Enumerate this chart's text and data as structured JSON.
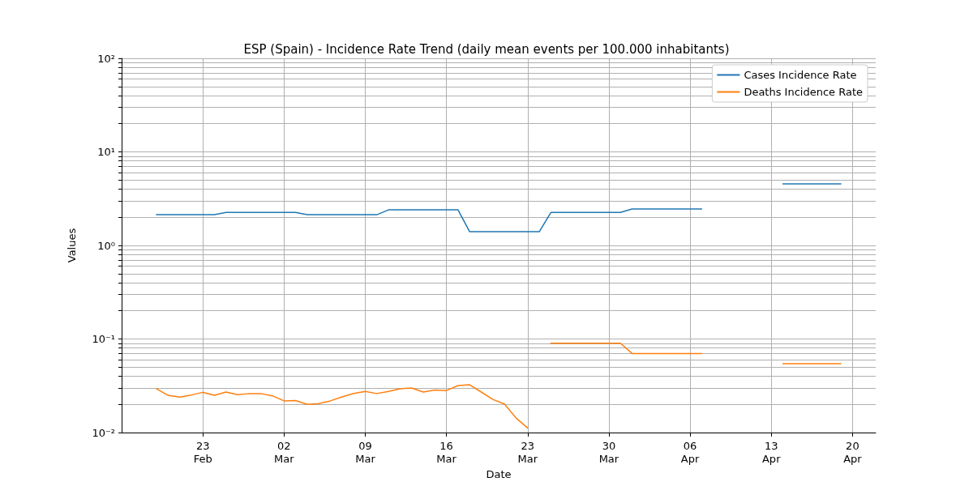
{
  "chart_data": {
    "type": "line",
    "title": "ESP (Spain) - Incidence Rate Trend (daily mean events per 100.000 inhabitants)",
    "xlabel": "Date",
    "ylabel": "Values",
    "x": [
      "--02-19",
      "--02-20",
      "--02-21",
      "--02-22",
      "--02-23",
      "--02-24",
      "--02-25",
      "--02-26",
      "--02-27",
      "--02-28",
      "--03-01",
      "--03-02",
      "--03-03",
      "--03-04",
      "--03-05",
      "--03-06",
      "--03-07",
      "--03-08",
      "--03-09",
      "--03-10",
      "--03-11",
      "--03-12",
      "--03-13",
      "--03-14",
      "--03-15",
      "--03-16",
      "--03-17",
      "--03-18",
      "--03-19",
      "--03-20",
      "--03-21",
      "--03-22",
      "--03-23",
      "--03-24",
      "--03-25",
      "--03-26",
      "--03-27",
      "--03-28",
      "--03-29",
      "--03-30",
      "--03-31",
      "--04-01",
      "--04-02",
      "--04-03",
      "--04-04",
      "--04-05",
      "--04-06",
      "--04-07",
      "--04-08",
      "--04-09",
      "--04-10",
      "--04-11",
      "--04-12",
      "--04-13",
      "--04-14",
      "--04-15",
      "--04-16",
      "--04-17",
      "--04-18",
      "--04-19"
    ],
    "series": [
      {
        "name": "Cases Incidence Rate",
        "color": "#1f77b4",
        "values": [
          2.13,
          2.13,
          2.13,
          2.13,
          2.13,
          2.13,
          2.25,
          2.25,
          2.25,
          2.25,
          2.25,
          2.25,
          2.25,
          2.13,
          2.13,
          2.13,
          2.13,
          2.13,
          2.13,
          2.13,
          2.4,
          2.4,
          2.4,
          2.4,
          2.4,
          2.4,
          2.4,
          1.4,
          1.4,
          1.4,
          1.4,
          1.4,
          1.4,
          1.4,
          2.25,
          2.25,
          2.25,
          2.25,
          2.25,
          2.25,
          2.25,
          2.45,
          2.45,
          2.45,
          2.45,
          2.45,
          2.45,
          2.45,
          null,
          null,
          null,
          null,
          null,
          null,
          4.55,
          4.55,
          4.55,
          4.55,
          4.55,
          4.55
        ]
      },
      {
        "name": "Deaths Incidence Rate",
        "color": "#ff7f0e",
        "values": [
          0.0294,
          0.025,
          0.0239,
          0.0252,
          0.0269,
          0.025,
          0.0271,
          0.0254,
          0.0261,
          0.0261,
          0.0247,
          0.0218,
          0.022,
          0.02,
          0.0204,
          0.0218,
          0.024,
          0.0262,
          0.0275,
          0.0261,
          0.0275,
          0.0294,
          0.0299,
          0.0271,
          0.0285,
          0.0281,
          0.0318,
          0.0324,
          0.0271,
          0.0226,
          0.0202,
          0.0143,
          0.0112,
          null,
          0.09,
          0.09,
          0.09,
          0.09,
          0.09,
          0.09,
          0.09,
          0.07,
          0.07,
          0.07,
          0.07,
          0.07,
          0.07,
          0.07,
          null,
          null,
          null,
          null,
          null,
          null,
          0.0545,
          0.0545,
          0.0545,
          0.0545,
          0.0545,
          0.0545
        ]
      }
    ],
    "log": "y",
    "xlim": [
      "--02-16",
      "--04-22"
    ],
    "xticks": [
      {
        "value": "--02-23",
        "label": "23\nFeb"
      },
      {
        "value": "--03-02",
        "label": "02\nMar"
      },
      {
        "value": "--03-09",
        "label": "09\nMar"
      },
      {
        "value": "--03-16",
        "label": "16\nMar"
      },
      {
        "value": "--03-23",
        "label": "23\nMar"
      },
      {
        "value": "--03-30",
        "label": "30\nMar"
      },
      {
        "value": "--04-06",
        "label": "06\nApr"
      },
      {
        "value": "--04-13",
        "label": "13\nApr"
      },
      {
        "value": "--04-20",
        "label": "20\nApr"
      }
    ],
    "ylim": [
      0.01,
      100
    ],
    "yticks": [
      {
        "value": 0.01,
        "label": "10⁻²"
      },
      {
        "value": 0.02,
        "label": null
      },
      {
        "value": 0.03,
        "label": null
      },
      {
        "value": 0.04,
        "label": null
      },
      {
        "value": 0.05,
        "label": null
      },
      {
        "value": 0.06,
        "label": null
      },
      {
        "value": 0.07,
        "label": null
      },
      {
        "value": 0.08,
        "label": null
      },
      {
        "value": 0.09,
        "label": null
      },
      {
        "value": 0.1,
        "label": "10⁻¹"
      },
      {
        "value": 0.2,
        "label": null
      },
      {
        "value": 0.3,
        "label": null
      },
      {
        "value": 0.4,
        "label": null
      },
      {
        "value": 0.5,
        "label": null
      },
      {
        "value": 0.6,
        "label": null
      },
      {
        "value": 0.7,
        "label": null
      },
      {
        "value": 0.8,
        "label": null
      },
      {
        "value": 0.9,
        "label": null
      },
      {
        "value": 1,
        "label": "10⁰"
      },
      {
        "value": 2,
        "label": null
      },
      {
        "value": 3,
        "label": null
      },
      {
        "value": 4,
        "label": null
      },
      {
        "value": 5,
        "label": null
      },
      {
        "value": 6,
        "label": null
      },
      {
        "value": 7,
        "label": null
      },
      {
        "value": 8,
        "label": null
      },
      {
        "value": 9,
        "label": null
      },
      {
        "value": 10,
        "label": "10¹"
      },
      {
        "value": 20,
        "label": null
      },
      {
        "value": 30,
        "label": null
      },
      {
        "value": 40,
        "label": null
      },
      {
        "value": 50,
        "label": null
      },
      {
        "value": 60,
        "label": null
      },
      {
        "value": 70,
        "label": null
      },
      {
        "value": 80,
        "label": null
      },
      {
        "value": 90,
        "label": null
      },
      {
        "value": 100,
        "label": "10²"
      }
    ],
    "grid": true,
    "legend": "top right",
    "marker": "none",
    "line_style": "solid"
  }
}
